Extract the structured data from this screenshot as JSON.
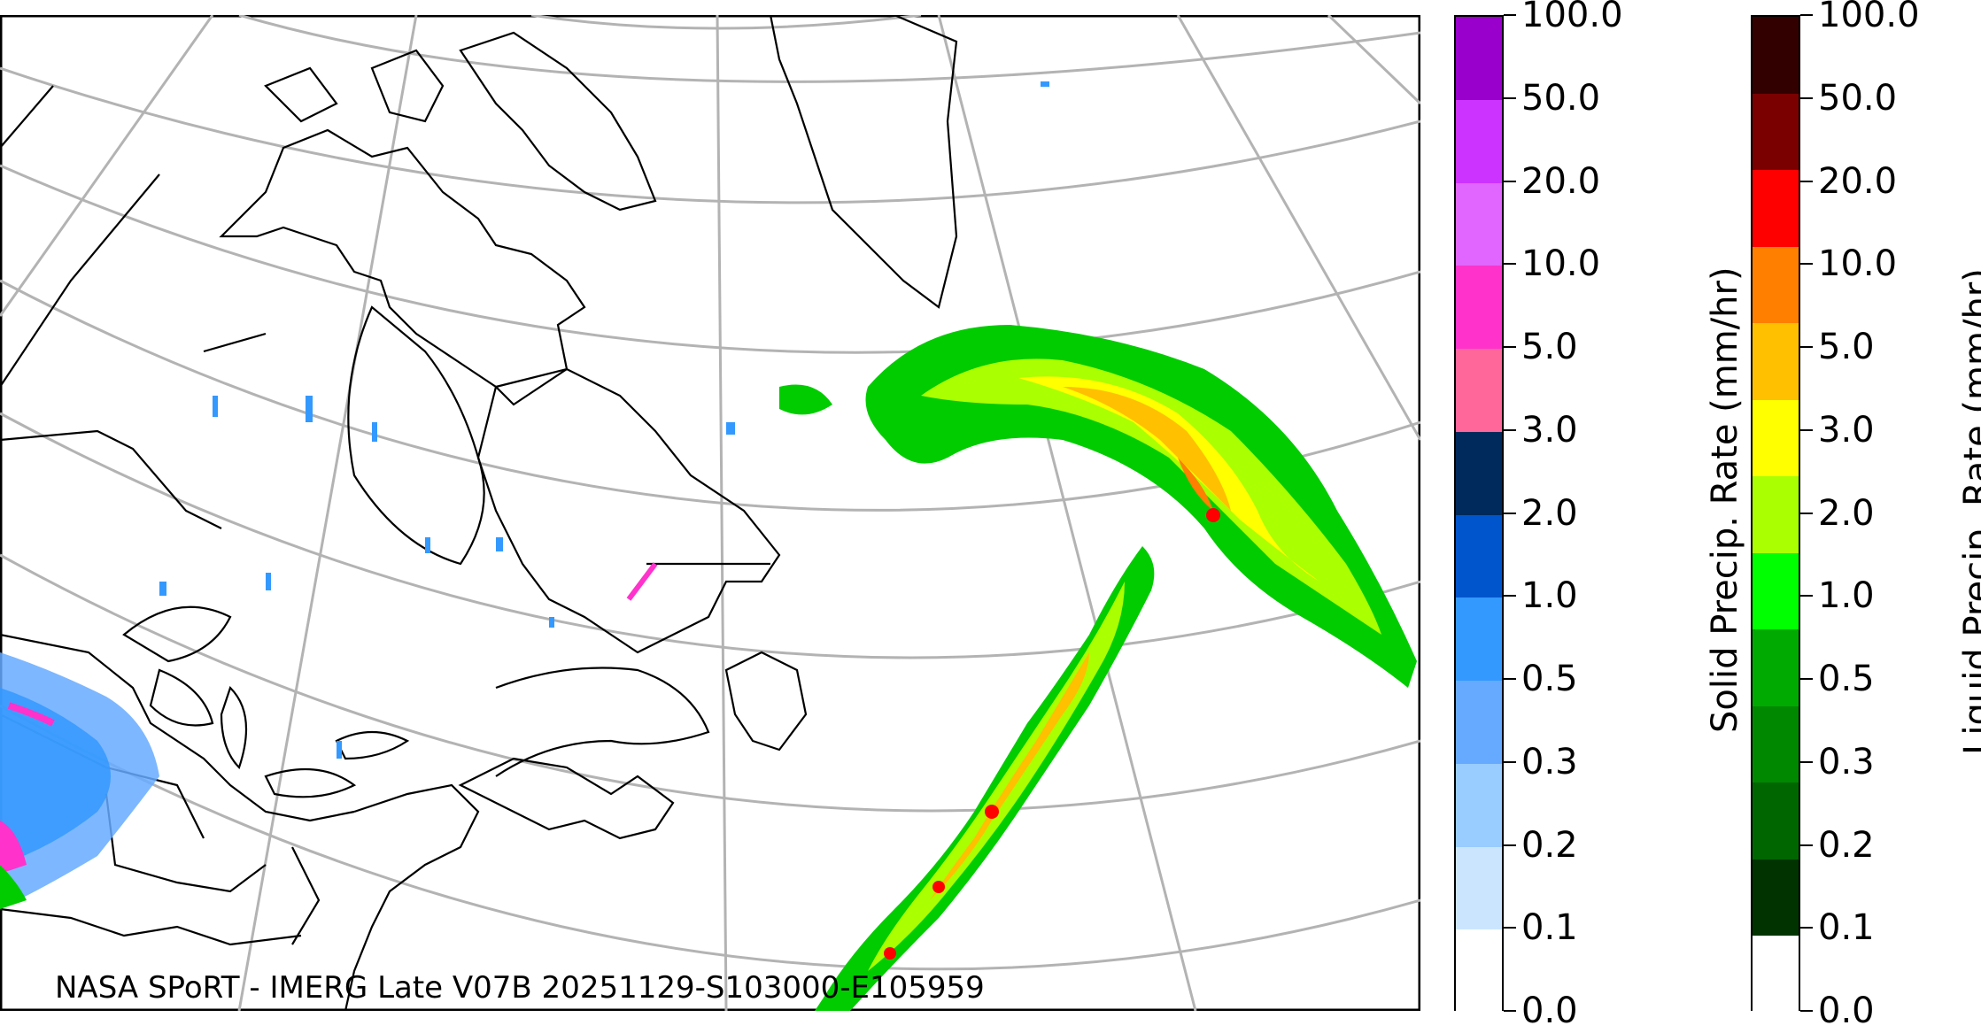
{
  "credit": "NASA SPoRT - IMERG Late V07B 20251129-S103000-E105959",
  "solid_bar": {
    "title": "Solid Precip. Rate (mm/hr)",
    "ticks": [
      "100.0",
      "50.0",
      "20.0",
      "10.0",
      "5.0",
      "3.0",
      "2.0",
      "1.0",
      "0.5",
      "0.3",
      "0.2",
      "0.1",
      "0.0"
    ],
    "colors": [
      "#9900cc",
      "#cc33ff",
      "#e066ff",
      "#ff33cc",
      "#ff6699",
      "#002a5c",
      "#0055cc",
      "#3399ff",
      "#66aaff",
      "#99ccff",
      "#cce5ff",
      "#ffffff"
    ]
  },
  "liquid_bar": {
    "title": "Liquid Precip. Rate (mm/hr)",
    "ticks": [
      "100.0",
      "50.0",
      "20.0",
      "10.0",
      "5.0",
      "3.0",
      "2.0",
      "1.0",
      "0.5",
      "0.3",
      "0.2",
      "0.1",
      "0.0"
    ],
    "colors": [
      "#330000",
      "#7a0000",
      "#ff0000",
      "#ff7f00",
      "#ffc000",
      "#ffff00",
      "#aaff00",
      "#00ff00",
      "#00aa00",
      "#008800",
      "#006600",
      "#003300",
      "#ffffff"
    ]
  },
  "map": {
    "graticule_color": "#b3b3b3",
    "coast_color": "#000000"
  }
}
